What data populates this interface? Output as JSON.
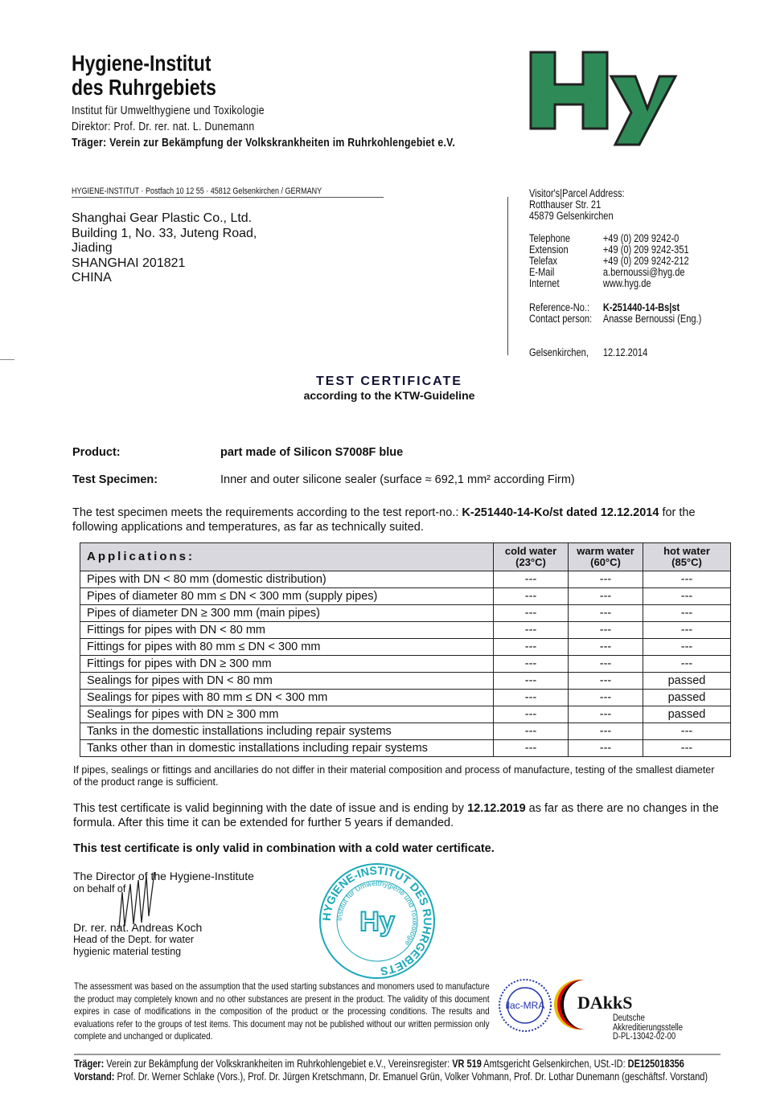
{
  "letterhead": {
    "name_line1": "Hygiene-Institut",
    "name_line2": "des Ruhrgebiets",
    "subtitle": "Institut für Umwelthygiene und Toxikologie",
    "director": "Direktor: Prof. Dr. rer. nat. L. Dunemann",
    "sponsor": "Träger: Verein zur Bekämpfung der Volkskrankheiten im Ruhrkohlengebiet e.V.",
    "logo_text": "Hy",
    "sender_line": "HYGIENE-INSTITUT · Postfach 10 12 55 · 45812 Gelsenkirchen / GERMANY"
  },
  "recipient": [
    "Shanghai Gear Plastic Co., Ltd.",
    "Building 1, No. 33, Juteng Road,",
    "Jiading",
    "SHANGHAI 201821",
    "CHINA"
  ],
  "contact": {
    "visitor_label": "Visitor's|Parcel Address:",
    "street": "Rotthauser Str. 21",
    "city": "45879 Gelsenkirchen",
    "rows": [
      {
        "label": "Telephone",
        "value": "+49 (0) 209 9242-0"
      },
      {
        "label": "Extension",
        "value": "+49 (0) 209 9242-351"
      },
      {
        "label": "Telefax",
        "value": "+49 (0) 209 9242-212"
      },
      {
        "label": "E-Mail",
        "value": "a.bernoussi@hyg.de"
      },
      {
        "label": "Internet",
        "value": "www.hyg.de"
      }
    ],
    "reference_label": "Reference-No.:",
    "reference_value": "K-251440-14-Bs|st",
    "contact_label": "Contact person:",
    "contact_value": "Anasse Bernoussi (Eng.)",
    "place": "Gelsenkirchen,",
    "date": "12.12.2014"
  },
  "title": {
    "main": "TEST CERTIFICATE",
    "sub": "according to the KTW-Guideline"
  },
  "product": {
    "label": "Product:",
    "value": "part made of Silicon S7008F blue"
  },
  "specimen": {
    "label": "Test Specimen:",
    "value": "Inner and outer silicone sealer (surface ≈ 692,1 mm² according Firm)"
  },
  "intro": {
    "pre": "The test specimen meets the requirements according to the test report-no.: ",
    "report": "K-251440-14-Ko/st dated 12.12.2014",
    "post": " for the following applications and temperatures, as far as technically suited."
  },
  "table": {
    "headers": [
      "Applications:",
      "cold water (23°C)",
      "warm water (60°C)",
      "hot water (85°C)"
    ],
    "rows": [
      [
        "Pipes with DN < 80 mm (domestic distribution)",
        "---",
        "---",
        "---"
      ],
      [
        "Pipes of diameter 80 mm ≤ DN < 300 mm (supply pipes)",
        "---",
        "---",
        "---"
      ],
      [
        "Pipes of diameter DN ≥ 300 mm (main pipes)",
        "---",
        "---",
        "---"
      ],
      [
        "Fittings for pipes with DN < 80 mm",
        "---",
        "---",
        "---"
      ],
      [
        "Fittings for pipes with 80 mm ≤ DN < 300 mm",
        "---",
        "---",
        "---"
      ],
      [
        "Fittings for pipes with DN ≥ 300 mm",
        "---",
        "---",
        "---"
      ],
      [
        "Sealings for pipes with DN < 80 mm",
        "---",
        "---",
        "passed"
      ],
      [
        "Sealings for pipes with 80 mm ≤ DN < 300 mm",
        "---",
        "---",
        "passed"
      ],
      [
        "Sealings for pipes with DN ≥ 300 mm",
        "---",
        "---",
        "passed"
      ],
      [
        "Tanks in the domestic installations including repair systems",
        "---",
        "---",
        "---"
      ],
      [
        "Tanks other than in domestic installations including repair systems",
        "---",
        "---",
        "---"
      ]
    ]
  },
  "note": "If pipes, sealings or fittings and ancillaries do not differ in their material composition and process of manufacture, testing of the smallest diameter of the product range is sufficient.",
  "validity": {
    "pre": "This test certificate is valid beginning with the date of issue and is ending by ",
    "date": "12.12.2019",
    "post": " as far as there are no changes in the formula. After this time it can be extended for further 5 years if demanded."
  },
  "cold_water_notice": "This test certificate is only valid in combination with a cold water certificate.",
  "signature": {
    "line1": "The Director of the Hygiene-Institute",
    "line2": "on behalf of",
    "name": "Dr. rer. nat. Andreas Koch",
    "role1": "Head of the Dept. for water",
    "role2": "hygienic material testing"
  },
  "stamp": {
    "ring_text": "HYGIENE-INSTITUT DES RUHRGEBIETS",
    "inner_text": "Institut für Umwelthygiene und Toxikologie",
    "center": "Hy"
  },
  "disclaimer": "The assessment was based on the assumption that the used starting substances and monomers used to manufacture the product may completely known and no other substances are present in the product. The validity of this document expires in case of modifications in the composition of the product or the processing conditions. The results and evaluations refer to the groups of test items. This document may not be published without our written permission only complete and unchanged or duplicated.",
  "accreditation": {
    "ilac": "ilac-MRA",
    "dakks": "DAkkS",
    "dakks_sub1": "Deutsche",
    "dakks_sub2": "Akkreditierungsstelle",
    "dakks_id": "D-PL-13042-02-00"
  },
  "footer": {
    "line1_label": "Träger:",
    "line1": " Verein zur Bekämpfung der Volkskrankheiten im Ruhrkohlengebiet e.V., Vereinsregister: ",
    "vr": "VR 519",
    "line1b": " Amtsgericht Gelsenkirchen, USt.-ID: ",
    "ust": "DE125018356",
    "line2_label": "Vorstand:",
    "line2": " Prof. Dr. Werner Schlake (Vors.), Prof. Dr. Jürgen Kretschmann, Dr. Emanuel Grün, Volker Vohmann, Prof. Dr. Lothar Dunemann (geschäftsf. Vorstand)"
  },
  "colors": {
    "logo_green": "#2e8b57",
    "stamp_teal": "#1aa8b8",
    "ilac_blue": "#2233aa"
  }
}
